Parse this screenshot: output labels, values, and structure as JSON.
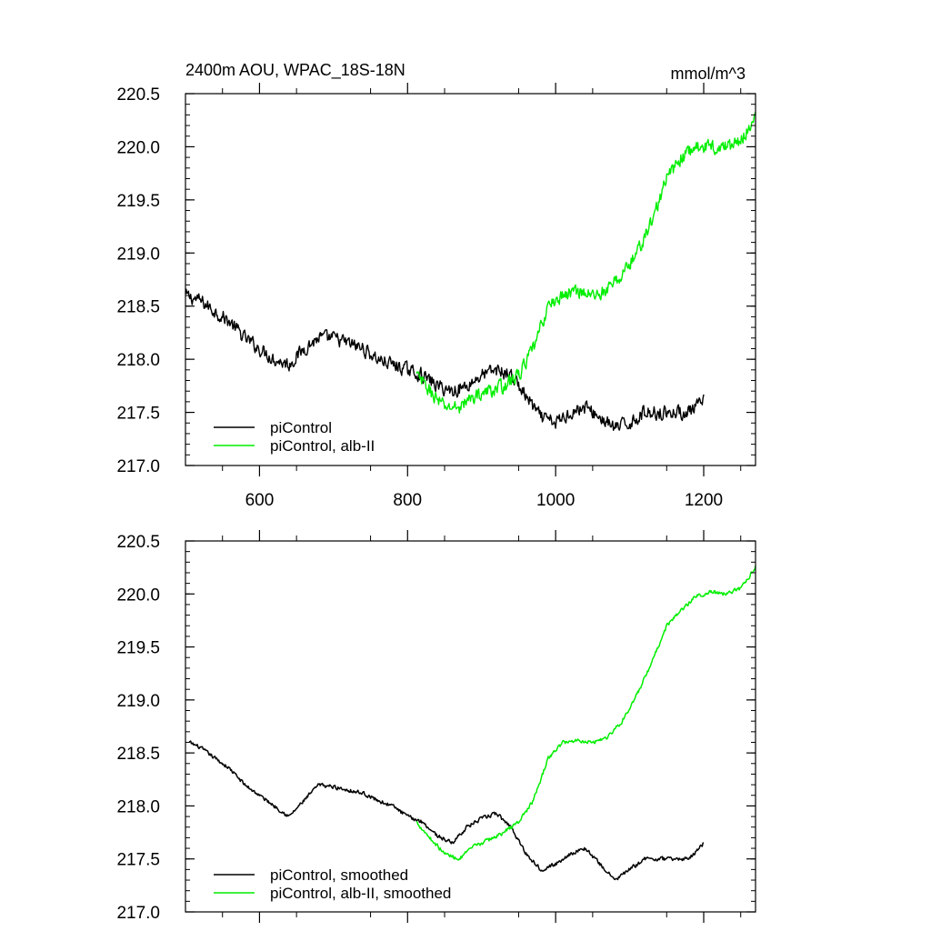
{
  "chart_data": [
    {
      "type": "line",
      "title": "2400m AOU, WPAC_18S-18N",
      "units": "mmol/m^3",
      "xlim": [
        500,
        1270
      ],
      "ylim": [
        217.0,
        220.5
      ],
      "xticks": [
        600,
        800,
        1000,
        1200
      ],
      "xtick_labels": [
        "600",
        "800",
        "1000",
        "1200"
      ],
      "yticks": [
        217.0,
        217.5,
        218.0,
        218.5,
        219.0,
        219.5,
        220.0,
        220.5
      ],
      "ytick_labels": [
        "217.0",
        "217.5",
        "218.0",
        "218.5",
        "219.0",
        "219.5",
        "220.0",
        "220.5"
      ],
      "grid": false,
      "legend_position": "bottom-left",
      "series": [
        {
          "name": "piControl",
          "color": "#000000",
          "noise": 0.09,
          "x": [
            500,
            520,
            540,
            560,
            580,
            600,
            620,
            640,
            660,
            680,
            700,
            720,
            740,
            760,
            780,
            800,
            820,
            840,
            860,
            880,
            900,
            920,
            940,
            960,
            980,
            1000,
            1020,
            1040,
            1060,
            1080,
            1100,
            1120,
            1140,
            1160,
            1180,
            1200
          ],
          "values": [
            218.6,
            218.55,
            218.45,
            218.35,
            218.2,
            218.1,
            218.0,
            217.95,
            218.1,
            218.2,
            218.2,
            218.15,
            218.1,
            218.0,
            217.95,
            217.9,
            217.85,
            217.75,
            217.7,
            217.75,
            217.85,
            217.9,
            217.85,
            217.65,
            217.45,
            217.4,
            217.5,
            217.55,
            217.45,
            217.35,
            217.4,
            217.5,
            217.5,
            217.5,
            217.5,
            217.6
          ]
        },
        {
          "name": "piControl, alb-II",
          "color": "#00ee00",
          "noise": 0.09,
          "x": [
            812,
            830,
            850,
            870,
            890,
            910,
            930,
            950,
            970,
            990,
            1010,
            1030,
            1050,
            1070,
            1090,
            1110,
            1130,
            1150,
            1170,
            1190,
            1210,
            1230,
            1250,
            1270
          ],
          "values": [
            217.85,
            217.7,
            217.55,
            217.55,
            217.65,
            217.7,
            217.75,
            217.85,
            218.1,
            218.5,
            218.6,
            218.65,
            218.6,
            218.65,
            218.8,
            219.0,
            219.3,
            219.7,
            219.9,
            220.0,
            220.0,
            220.0,
            220.05,
            220.3
          ]
        }
      ]
    },
    {
      "type": "line",
      "xlim": [
        500,
        1270
      ],
      "ylim": [
        217.0,
        220.5
      ],
      "xticks": [
        600,
        800,
        1000,
        1200
      ],
      "yticks": [
        217.0,
        217.5,
        218.0,
        218.5,
        219.0,
        219.5,
        220.0,
        220.5
      ],
      "ytick_labels": [
        "217.0",
        "217.5",
        "218.0",
        "218.5",
        "219.0",
        "219.5",
        "220.0",
        "220.5"
      ],
      "grid": false,
      "legend_position": "bottom-left",
      "series": [
        {
          "name": "piControl, smoothed",
          "color": "#000000",
          "noise": 0.025,
          "x": [
            505,
            520,
            540,
            560,
            580,
            600,
            620,
            640,
            660,
            680,
            700,
            720,
            740,
            760,
            780,
            800,
            820,
            840,
            860,
            880,
            900,
            920,
            940,
            960,
            980,
            1000,
            1020,
            1040,
            1060,
            1080,
            1100,
            1120,
            1140,
            1160,
            1180,
            1200
          ],
          "values": [
            218.6,
            218.55,
            218.45,
            218.35,
            218.2,
            218.1,
            218.0,
            217.9,
            218.05,
            218.2,
            218.18,
            218.15,
            218.12,
            218.05,
            218.0,
            217.9,
            217.85,
            217.72,
            217.65,
            217.8,
            217.88,
            217.93,
            217.8,
            217.55,
            217.4,
            217.45,
            217.55,
            217.6,
            217.45,
            217.3,
            217.4,
            217.5,
            217.5,
            217.5,
            217.5,
            217.65
          ]
        },
        {
          "name": "piControl, alb-II, smoothed",
          "color": "#00ee00",
          "noise": 0.025,
          "x": [
            812,
            830,
            850,
            870,
            890,
            910,
            930,
            950,
            970,
            990,
            1010,
            1030,
            1050,
            1070,
            1090,
            1110,
            1130,
            1150,
            1170,
            1190,
            1210,
            1230,
            1250,
            1270
          ],
          "values": [
            217.85,
            217.7,
            217.55,
            217.5,
            217.62,
            217.68,
            217.75,
            217.85,
            218.05,
            218.45,
            218.6,
            218.62,
            218.6,
            218.65,
            218.8,
            219.05,
            219.35,
            219.7,
            219.85,
            219.98,
            220.02,
            220.0,
            220.05,
            220.25
          ]
        }
      ]
    }
  ]
}
